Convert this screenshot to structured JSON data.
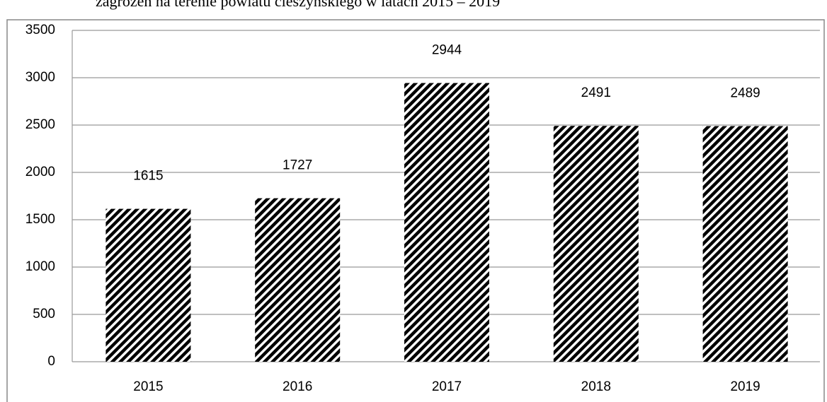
{
  "chart_data": {
    "type": "bar",
    "title": "zagrożeń na terenie powiatu cieszyńskiego w latach 2015 – 2019",
    "categories": [
      "2015",
      "2016",
      "2017",
      "2018",
      "2019"
    ],
    "values": [
      1615,
      1727,
      2944,
      2491,
      2489
    ],
    "color": "#000000",
    "ylim": [
      0,
      3500
    ],
    "yticks": [
      0,
      500,
      1000,
      1500,
      2000,
      2500,
      3000,
      3500
    ],
    "grid": true
  }
}
